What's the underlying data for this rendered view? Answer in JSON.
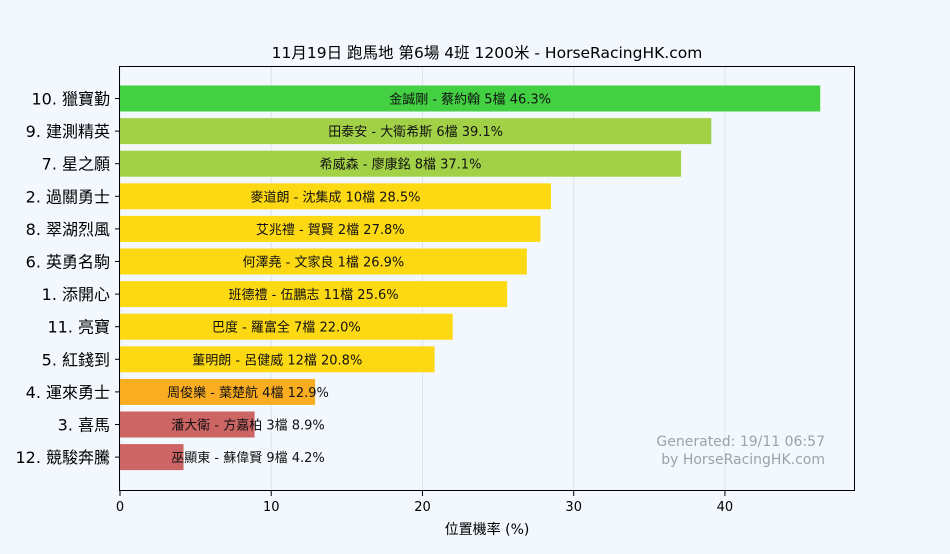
{
  "chart_data": {
    "type": "bar",
    "orientation": "horizontal",
    "title": "11月19日  跑馬地  第6場  4班  1200米 - HorseRacingHK.com",
    "xlabel": "位置機率 (%)",
    "ylabel": "",
    "xlim": [
      0,
      48.6
    ],
    "xticks": [
      "0",
      "10",
      "20",
      "30",
      "40"
    ],
    "grid": "vertical",
    "categories": [
      "10. 獵寶勤",
      "9. 建測精英",
      "7. 星之願",
      "2. 過關勇士",
      "8. 翠湖烈風",
      "6. 英勇名駒",
      "1. 添開心",
      "11. 亮寶",
      "5. 紅錢到",
      "4. 運來勇士",
      "3. 喜馬",
      "12. 競駿奔騰"
    ],
    "values": [
      46.3,
      39.1,
      37.1,
      28.5,
      27.8,
      26.9,
      25.6,
      22.0,
      20.8,
      12.9,
      8.9,
      4.2
    ],
    "bar_labels": [
      "金誠剛 - 蔡約翰 5檔  46.3%",
      "田泰安 - 大衛希斯 6檔  39.1%",
      "希威森 - 廖康銘 8檔  37.1%",
      "麥道朗 - 沈集成 10檔  28.5%",
      "艾兆禮 - 賀賢 2檔  27.8%",
      "何澤堯 - 文家良 1檔  26.9%",
      "班德禮 - 伍鵬志 11檔  25.6%",
      "巴度 - 羅富全 7檔  22.0%",
      "董明朗 - 呂健威 12檔  20.8%",
      "周俊樂 - 葉楚航 4檔  12.9%",
      "潘大衛 - 方嘉柏 3檔  8.9%",
      "巫顯東 - 蘇偉賢 9檔  4.2%"
    ],
    "colors": [
      "#43d143",
      "#a2d148",
      "#a2d148",
      "#fdd914",
      "#fdd914",
      "#fdd914",
      "#fdd914",
      "#fdd914",
      "#fdd914",
      "#fbad21",
      "#cd6565",
      "#cd6565"
    ],
    "watermark": [
      "Generated: 19/11 06:57",
      "by HorseRacingHK.com"
    ]
  },
  "colors": {
    "background": "#f2f8fd",
    "grid": "#dde5ec",
    "axis": "#000000",
    "watermark": "#9aa3aa"
  }
}
